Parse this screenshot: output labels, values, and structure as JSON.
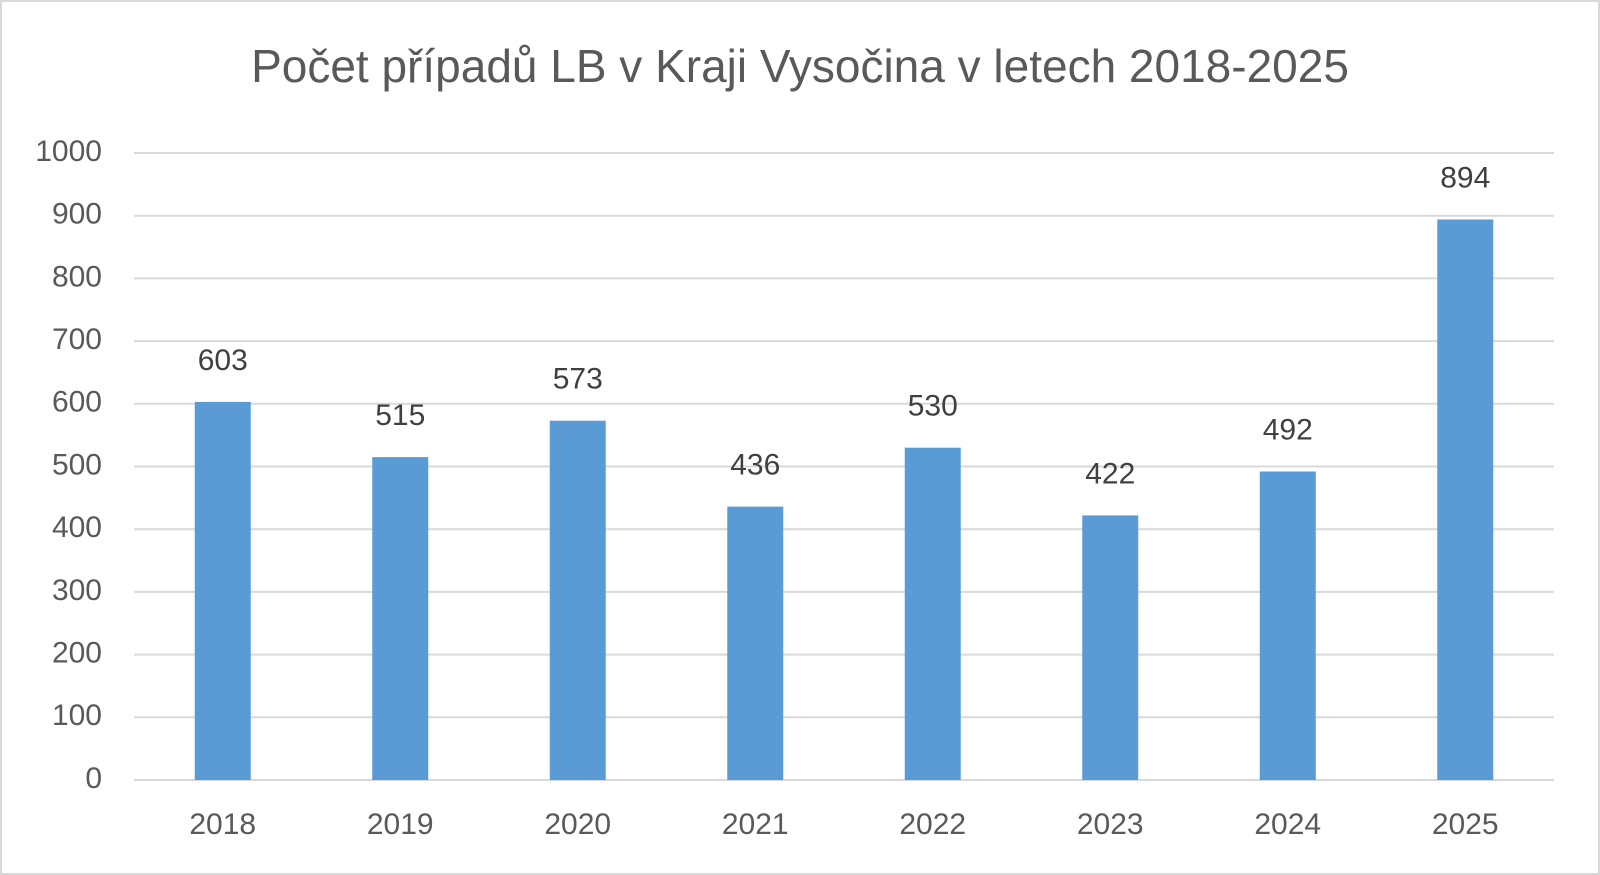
{
  "chart_data": {
    "type": "bar",
    "title": "Počet případů LB v Kraji Vysočina v letech 2018-2025",
    "categories": [
      "2018",
      "2019",
      "2020",
      "2021",
      "2022",
      "2023",
      "2024",
      "2025"
    ],
    "values": [
      603,
      515,
      573,
      436,
      530,
      422,
      492,
      894
    ],
    "color": "#5b9bd5",
    "ylim": [
      0,
      1000
    ],
    "yticks": [
      0,
      100,
      200,
      300,
      400,
      500,
      600,
      700,
      800,
      900,
      1000
    ],
    "grid": true
  }
}
